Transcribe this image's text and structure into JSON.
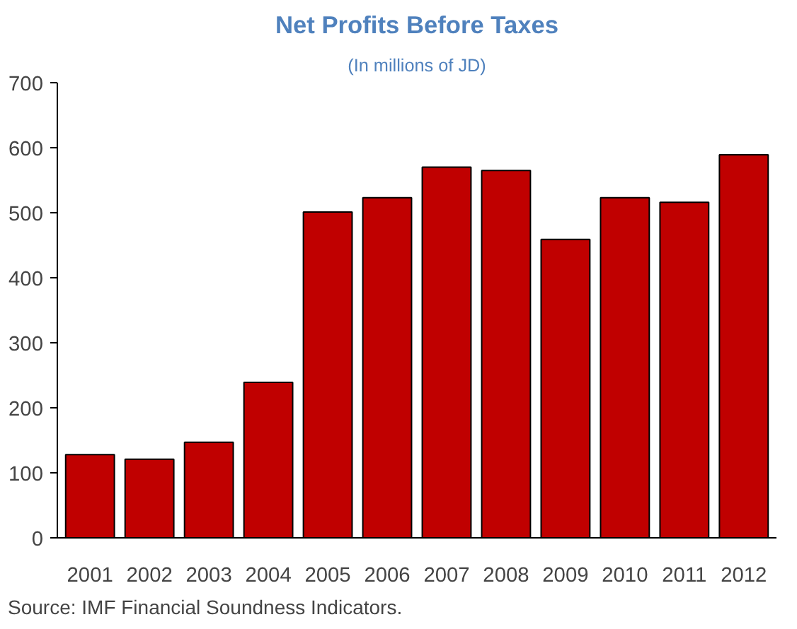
{
  "chart_data": {
    "type": "bar",
    "title": "Net Profits Before Taxes",
    "subtitle": "(In millions of JD)",
    "categories": [
      "2001",
      "2002",
      "2003",
      "2004",
      "2005",
      "2006",
      "2007",
      "2008",
      "2009",
      "2010",
      "2011",
      "2012"
    ],
    "values": [
      128,
      121,
      147,
      239,
      501,
      523,
      570,
      565,
      459,
      523,
      516,
      589
    ],
    "color": "#c00000",
    "ylim": [
      0,
      700
    ],
    "yticks": [
      0,
      100,
      200,
      300,
      400,
      500,
      600,
      700
    ],
    "grid": false,
    "annotations": [
      "Source: IMF Financial Soundness Indicators."
    ]
  }
}
